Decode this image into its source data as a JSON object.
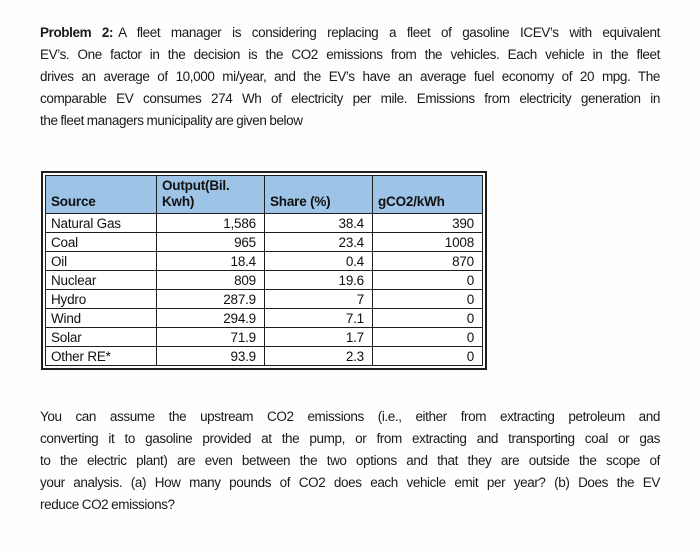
{
  "problem": {
    "label": "Problem 2:",
    "lines": [
      "A fleet manager is considering replacing a fleet of gasoline ICEV’s with equivalent",
      "EV’s. One factor in the decision is the CO2 emissions from the vehicles. Each vehicle in the fleet",
      "drives an average of 10,000 mi/year, and the EV’s have an average fuel economy of 20 mpg. The",
      "comparable EV consumes 274 Wh of electricity per mile. Emissions from electricity generation in",
      "the fleet managers municipality are given below"
    ]
  },
  "table": {
    "headers": [
      "Source",
      "Output(Bil. Kwh)",
      "Share (%)",
      "gCO2/kWh"
    ],
    "rows": [
      [
        "Natural Gas",
        "1,586",
        "38.4",
        "390"
      ],
      [
        "Coal",
        "965",
        "23.4",
        "1008"
      ],
      [
        "Oil",
        "18.4",
        "0.4",
        "870"
      ],
      [
        "Nuclear",
        "809",
        "19.6",
        "0"
      ],
      [
        "Hydro",
        "287.9",
        "7",
        "0"
      ],
      [
        "Wind",
        "294.9",
        "7.1",
        "0"
      ],
      [
        "Solar",
        "71.9",
        "1.7",
        "0"
      ],
      [
        "Other RE*",
        "93.9",
        "2.3",
        "0"
      ]
    ],
    "header_bg": "#9DC3E6",
    "border_color": "#1f1f1f"
  },
  "assumptions": {
    "lines": [
      "You can assume the upstream CO2 emissions (i.e., either from extracting petroleum and",
      "converting it to gasoline provided at the pump, or from extracting and transporting coal or gas",
      "to the electric plant) are even between the two options and that they are outside the scope of",
      "your analysis. (a) How many pounds of CO2 does each vehicle emit per year? (b) Does the EV",
      "reduce CO2 emissions?"
    ]
  }
}
